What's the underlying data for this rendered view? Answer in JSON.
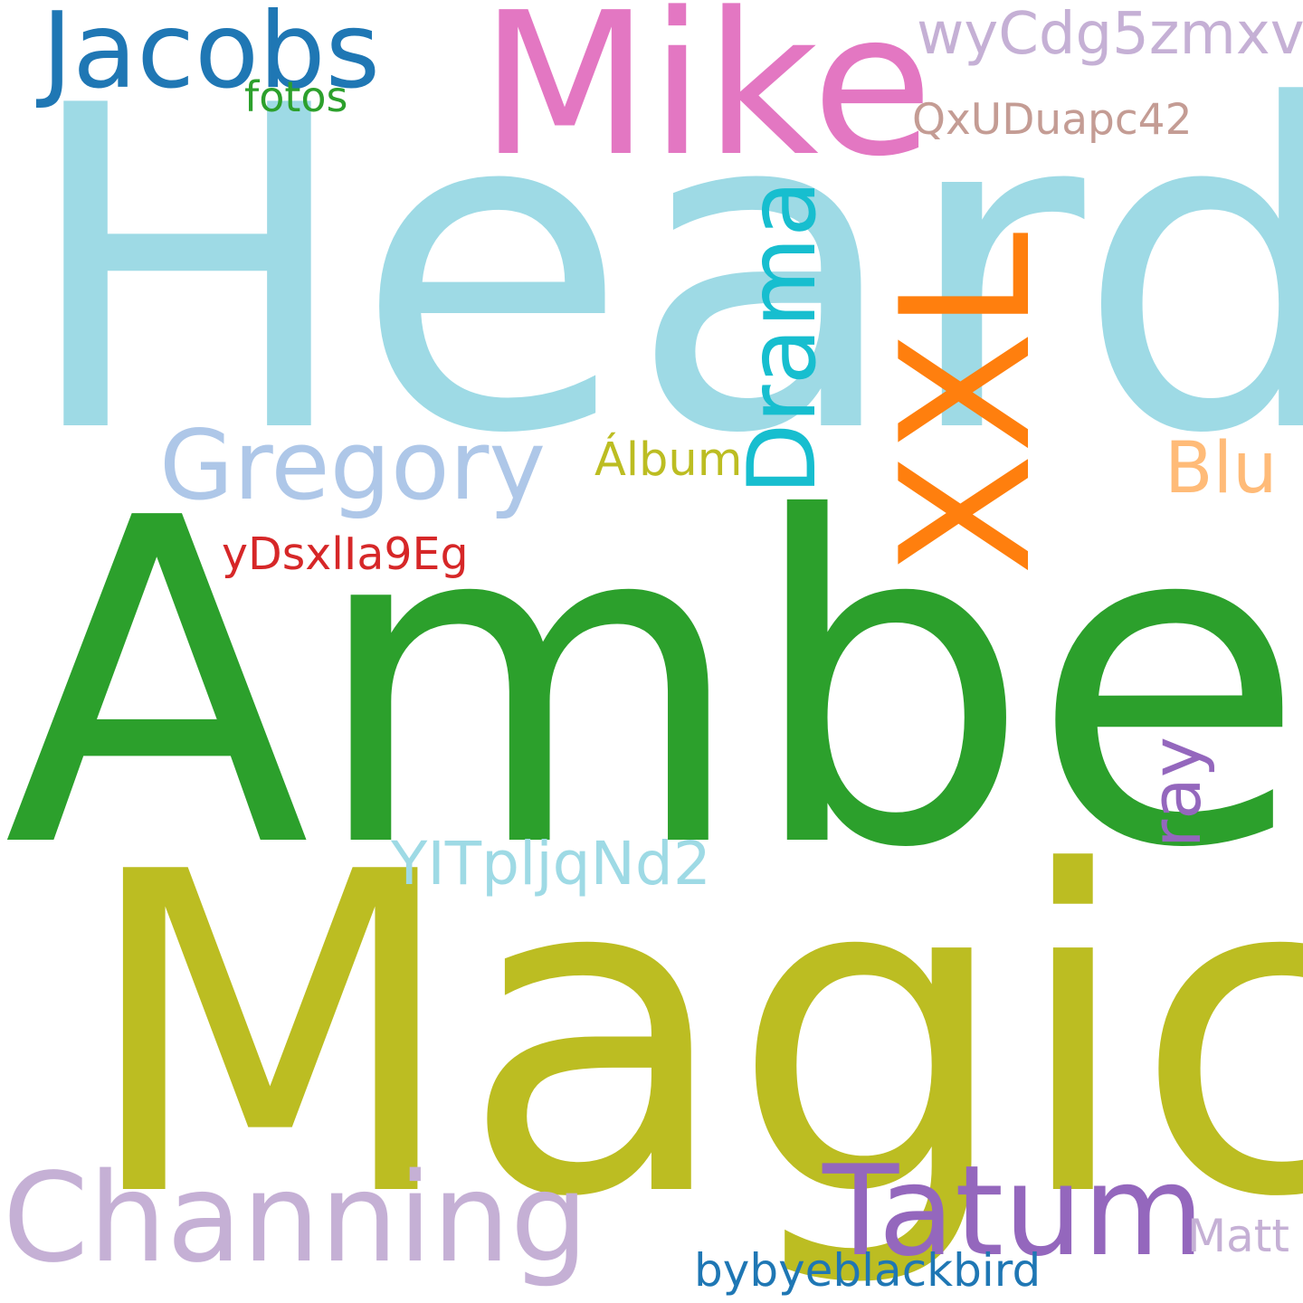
{
  "words": [
    {
      "text": "Heard",
      "color": "#9edae5"
    },
    {
      "text": "Amber",
      "color": "#2ca02c"
    },
    {
      "text": "Magic",
      "color": "#bcbd22"
    },
    {
      "text": "Mike",
      "color": "#e377c2"
    },
    {
      "text": "Jacobs",
      "color": "#1f77b4"
    },
    {
      "text": "fotos",
      "color": "#2ca02c"
    },
    {
      "text": "wyCdg5zmxv",
      "color": "#c5b0d5"
    },
    {
      "text": "QxUDuapc42",
      "color": "#c49c94"
    },
    {
      "text": "Gregory",
      "color": "#aec7e8"
    },
    {
      "text": "Drama",
      "color": "#17becf"
    },
    {
      "text": "XXL",
      "color": "#ff7f0e"
    },
    {
      "text": "Álbum",
      "color": "#bcbd22"
    },
    {
      "text": "Blu",
      "color": "#ffbb78"
    },
    {
      "text": "yDsxlIa9Eg",
      "color": "#d62728"
    },
    {
      "text": "ray",
      "color": "#9467bd"
    },
    {
      "text": "YITpljqNd2",
      "color": "#9edae5"
    },
    {
      "text": "Channing",
      "color": "#c5b0d5"
    },
    {
      "text": "Tatum",
      "color": "#9467bd"
    },
    {
      "text": "Matt",
      "color": "#c5b0d5"
    },
    {
      "text": "bybyeblackbird",
      "color": "#1f77b4"
    }
  ]
}
